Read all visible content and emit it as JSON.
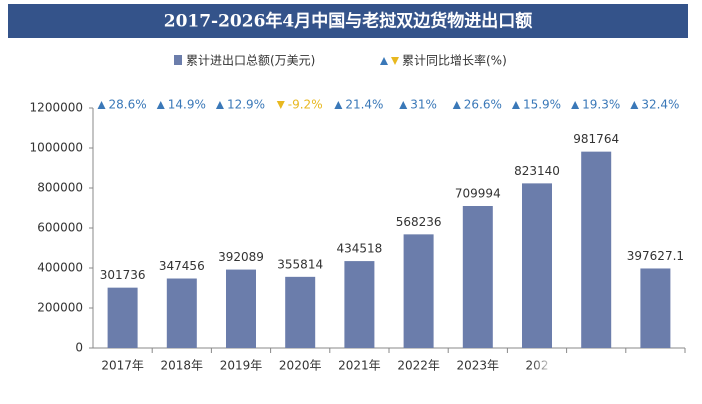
{
  "chart_data": {
    "type": "bar",
    "title": "2017-2026年4月中国与老挝双边货物进出口额",
    "categories": [
      "2017年",
      "2018年",
      "2019年",
      "2020年",
      "2021年",
      "2022年",
      "2023年",
      "202",
      null,
      null
    ],
    "series": [
      {
        "name": "累计进出口总额(万美元)",
        "color": "#6b7dab",
        "values": [
          301736,
          347456,
          392089,
          355814,
          434518,
          568236,
          709994,
          823140,
          981764,
          397627.1
        ]
      },
      {
        "name": "累计同比增长率(%)",
        "color": "#3a78b8",
        "negative_color": "#e8b820",
        "values": [
          28.6,
          14.9,
          12.9,
          -9.2,
          21.4,
          31,
          26.6,
          15.9,
          19.3,
          32.4
        ],
        "value_labels": [
          "28.6%",
          "14.9%",
          "12.9%",
          "-9.2%",
          "21.4%",
          "31%",
          "26.6%",
          "15.9%",
          "19.3%",
          "32.4%"
        ]
      }
    ],
    "ylim": [
      0,
      1200000
    ],
    "yticks": [
      0,
      200000,
      400000,
      600000,
      800000,
      1000000,
      1200000
    ],
    "grid": false
  }
}
